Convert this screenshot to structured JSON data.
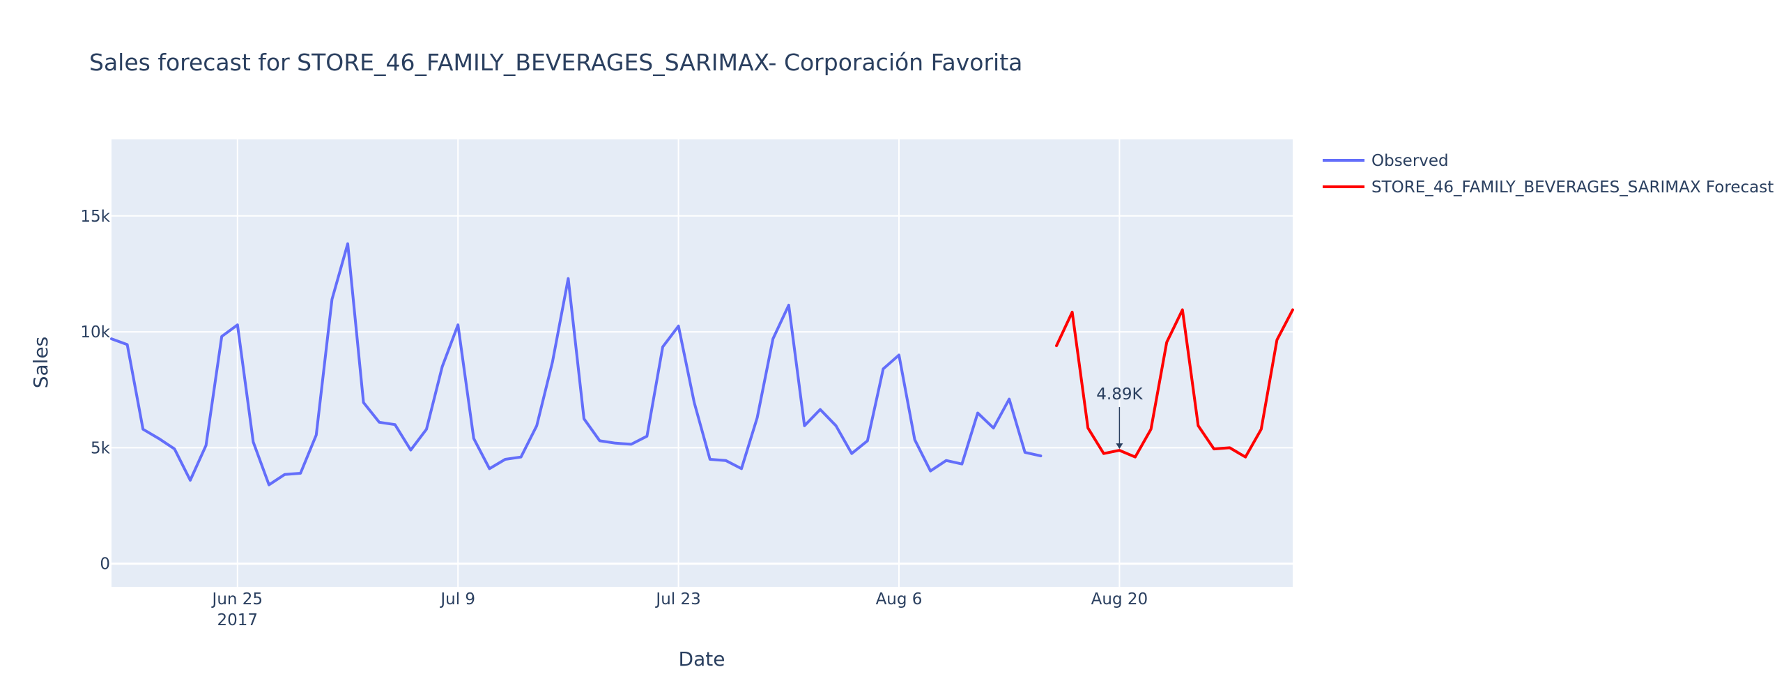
{
  "chart_data": {
    "type": "line",
    "title": "Sales forecast for STORE_46_FAMILY_BEVERAGES_SARIMAX- Corporación Favorita",
    "xlabel": "Date",
    "ylabel": "Sales",
    "xlim": [
      "2017-06-17",
      "2017-08-31"
    ],
    "ylim": [
      -1000,
      18300
    ],
    "x_ticks": [
      {
        "date": "2017-06-25",
        "label": "Jun 25",
        "sublabel": "2017"
      },
      {
        "date": "2017-07-09",
        "label": "Jul 9",
        "sublabel": ""
      },
      {
        "date": "2017-07-23",
        "label": "Jul 23",
        "sublabel": ""
      },
      {
        "date": "2017-08-06",
        "label": "Aug 6",
        "sublabel": ""
      },
      {
        "date": "2017-08-20",
        "label": "Aug 20",
        "sublabel": ""
      }
    ],
    "y_ticks": [
      {
        "value": 0,
        "label": "0"
      },
      {
        "value": 5000,
        "label": "5k"
      },
      {
        "value": 10000,
        "label": "10k"
      },
      {
        "value": 15000,
        "label": "15k"
      }
    ],
    "grid": true,
    "legend_position": "top-right, outside plot",
    "series": [
      {
        "name": "Observed",
        "color": "#636efa",
        "x": [
          "2017-06-17",
          "2017-06-18",
          "2017-06-19",
          "2017-06-20",
          "2017-06-21",
          "2017-06-22",
          "2017-06-23",
          "2017-06-24",
          "2017-06-25",
          "2017-06-26",
          "2017-06-27",
          "2017-06-28",
          "2017-06-29",
          "2017-06-30",
          "2017-07-01",
          "2017-07-02",
          "2017-07-03",
          "2017-07-04",
          "2017-07-05",
          "2017-07-06",
          "2017-07-07",
          "2017-07-08",
          "2017-07-09",
          "2017-07-10",
          "2017-07-11",
          "2017-07-12",
          "2017-07-13",
          "2017-07-14",
          "2017-07-15",
          "2017-07-16",
          "2017-07-17",
          "2017-07-18",
          "2017-07-19",
          "2017-07-20",
          "2017-07-21",
          "2017-07-22",
          "2017-07-23",
          "2017-07-24",
          "2017-07-25",
          "2017-07-26",
          "2017-07-27",
          "2017-07-28",
          "2017-07-29",
          "2017-07-30",
          "2017-07-31",
          "2017-08-01",
          "2017-08-02",
          "2017-08-03",
          "2017-08-04",
          "2017-08-05",
          "2017-08-06",
          "2017-08-07",
          "2017-08-08",
          "2017-08-09",
          "2017-08-10",
          "2017-08-11",
          "2017-08-12",
          "2017-08-13",
          "2017-08-14",
          "2017-08-15"
        ],
        "values": [
          9700,
          9450,
          5800,
          5400,
          4950,
          3600,
          5100,
          9800,
          10300,
          5250,
          3400,
          3850,
          3900,
          5550,
          11400,
          13800,
          6950,
          6100,
          6000,
          4900,
          5800,
          8500,
          10300,
          5400,
          4100,
          4500,
          4600,
          5950,
          8700,
          12300,
          6250,
          5300,
          5200,
          5150,
          5500,
          9350,
          10250,
          6950,
          4500,
          4450,
          4100,
          6300,
          9700,
          11150,
          5950,
          6650,
          5950,
          4750,
          5300,
          8400,
          9000,
          5350,
          4000,
          4450,
          4300,
          6500,
          5850,
          7100,
          4800,
          4650
        ]
      },
      {
        "name": "STORE_46_FAMILY_BEVERAGES_SARIMAX Forecast",
        "color": "#ff0000",
        "x": [
          "2017-08-16",
          "2017-08-17",
          "2017-08-18",
          "2017-08-19",
          "2017-08-20",
          "2017-08-21",
          "2017-08-22",
          "2017-08-23",
          "2017-08-24",
          "2017-08-25",
          "2017-08-26",
          "2017-08-27",
          "2017-08-28",
          "2017-08-29",
          "2017-08-30",
          "2017-08-31"
        ],
        "values": [
          9400,
          10850,
          5850,
          4750,
          4890,
          4600,
          5800,
          9550,
          10950,
          5950,
          4950,
          5000,
          4600,
          5800,
          9650,
          10950
        ]
      }
    ],
    "annotation": {
      "date": "2017-08-20",
      "value": 4890,
      "text": "4.89K",
      "arrow": true
    }
  }
}
